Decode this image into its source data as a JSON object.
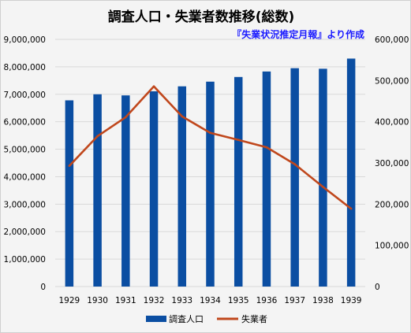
{
  "chart_data": {
    "type": "bar+line",
    "title": "調査人口・失業者数推移(総数)",
    "subtitle": "『失業状況推定月報』より作成",
    "categories": [
      "1929",
      "1930",
      "1931",
      "1932",
      "1933",
      "1934",
      "1935",
      "1936",
      "1937",
      "1938",
      "1939"
    ],
    "series": [
      {
        "name": "調査人口",
        "type": "bar",
        "axis": "left",
        "color": "#0b4ea2",
        "values": [
          6780000,
          7000000,
          6960000,
          7110000,
          7290000,
          7460000,
          7630000,
          7830000,
          7950000,
          7930000,
          8300000
        ]
      },
      {
        "name": "失業者",
        "type": "line",
        "axis": "right",
        "color": "#c0471c",
        "values": [
          293000,
          365000,
          411000,
          486000,
          413000,
          373000,
          356000,
          338000,
          297000,
          242000,
          189000
        ]
      }
    ],
    "ylim_left": [
      0,
      9000000
    ],
    "yticks_left": [
      "0",
      "1,000,000",
      "2,000,000",
      "3,000,000",
      "4,000,000",
      "5,000,000",
      "6,000,000",
      "7,000,000",
      "8,000,000",
      "9,000,000"
    ],
    "ylim_right": [
      0,
      600000
    ],
    "yticks_right": [
      "0",
      "100,000",
      "200,000",
      "300,000",
      "400,000",
      "500,000",
      "600,000"
    ],
    "legend": "bottom",
    "grid": true
  }
}
